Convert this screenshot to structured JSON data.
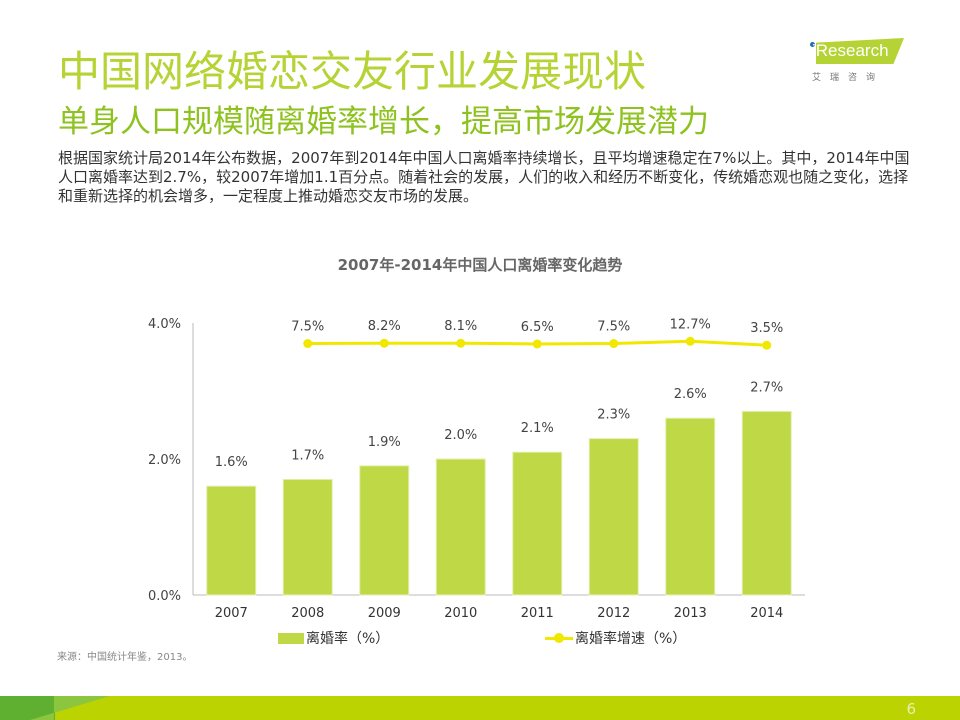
{
  "header": {
    "title": "中国网络婚恋交友行业发展现状",
    "subtitle": "单身人口规模随离婚率增长，提高市场发展潜力",
    "body": "根据国家统计局2014年公布数据，2007年到2014年中国人口离婚率持续增长，且平均增速稳定在7%以上。其中，2014年中国人口离婚率达到2.7%，较2007年增加1.1百分点。随着社会的发展，人们的收入和经历不断变化，传统婚恋观也随之变化，选择和重新选择的机会增多，一定程度上推动婚恋交友市场的发展。"
  },
  "logo": {
    "word": "iResearch",
    "cn": "艾瑞咨询"
  },
  "chart_data": {
    "type": "bar",
    "title": "2007年-2014年中国人口离婚率变化趋势",
    "categories": [
      "2007",
      "2008",
      "2009",
      "2010",
      "2011",
      "2012",
      "2013",
      "2014"
    ],
    "ylim": [
      0,
      4.0
    ],
    "yticks": [
      "0.0%",
      "2.0%",
      "4.0%"
    ],
    "ytick_values": [
      0,
      2,
      4
    ],
    "series": [
      {
        "name": "离婚率（%）",
        "type": "bar",
        "color": "#bfd946",
        "values": [
          1.6,
          1.7,
          1.9,
          2.0,
          2.1,
          2.3,
          2.6,
          2.7
        ],
        "labels": [
          "1.6%",
          "1.7%",
          "1.9%",
          "2.0%",
          "2.1%",
          "2.3%",
          "2.6%",
          "2.7%"
        ]
      },
      {
        "name": "离婚率增速（%）",
        "type": "line",
        "color": "#f0e800",
        "secondary_axis": true,
        "y2lim": [
          -575,
          55
        ],
        "values": [
          null,
          7.5,
          8.2,
          8.1,
          6.5,
          7.5,
          12.7,
          3.5
        ],
        "labels": [
          null,
          "7.5%",
          "8.2%",
          "8.1%",
          "6.5%",
          "7.5%",
          "12.7%",
          "3.5%"
        ]
      }
    ],
    "legend": "bottom"
  },
  "source": "来源：中国统计年鉴，2013。",
  "page_number": "6"
}
